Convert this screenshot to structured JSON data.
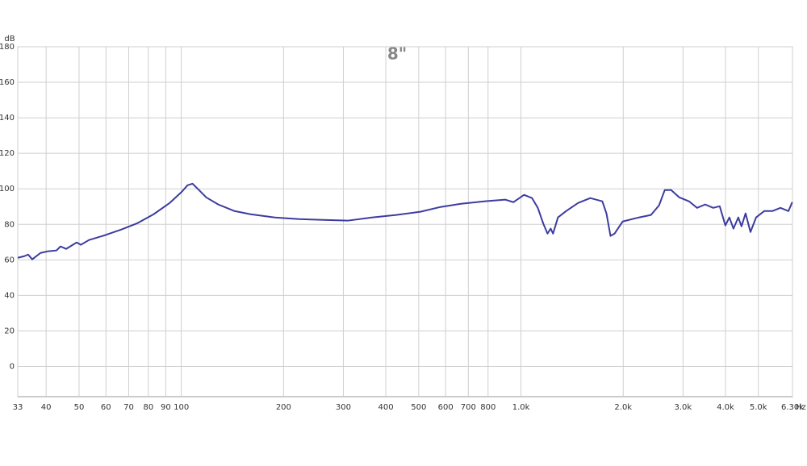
{
  "chart_data": {
    "type": "line",
    "title": "8\"",
    "y_label": "dB",
    "x_label": "Hz",
    "log_x": true,
    "grid": true,
    "xlim": [
      33,
      6300
    ],
    "ylim": [
      -17,
      180
    ],
    "xticks": [
      33,
      40,
      50,
      60,
      70,
      80,
      90,
      100,
      200,
      300,
      400,
      500,
      600,
      700,
      800,
      {
        "value": 1000,
        "label": "1.0k"
      },
      {
        "value": 2000,
        "label": "2.0k"
      },
      {
        "value": 3000,
        "label": "3.0k"
      },
      {
        "value": 4000,
        "label": "4.0k"
      },
      {
        "value": 5000,
        "label": "5.0k"
      },
      {
        "value": 6300,
        "label": "6.30k"
      }
    ],
    "yticks": [
      0,
      20,
      40,
      60,
      80,
      100,
      120,
      140,
      160,
      180
    ],
    "color": "#3c3ca0",
    "x": [
      33,
      34.5,
      35.4,
      36.4,
      38.5,
      40.6,
      42.9,
      44.1,
      45.8,
      49.2,
      50.6,
      53.5,
      59.6,
      66.6,
      74.3,
      82.9,
      92.5,
      100.4,
      104.3,
      107.9,
      112.1,
      118.4,
      128.5,
      143.4,
      160,
      188.6,
      222,
      262,
      309,
      364,
      429,
      506,
      580,
      666,
      784,
      900,
      950,
      1021,
      1078,
      1121,
      1164,
      1197,
      1223,
      1243,
      1285,
      1358,
      1474,
      1600,
      1736,
      1785,
      1835,
      1886,
      1992,
      2224,
      2414,
      2550,
      2650,
      2769,
      2925,
      3123,
      3300,
      3486,
      3680,
      3847,
      3997,
      4108,
      4222,
      4363,
      4460,
      4584,
      4739,
      4923,
      5202,
      5496,
      5806,
      6132,
      6290
    ],
    "values": [
      61.2,
      62.1,
      63,
      60.3,
      63.9,
      64.9,
      65.3,
      67.6,
      66.2,
      69.8,
      68.5,
      71.2,
      73.9,
      77.1,
      80.7,
      85.7,
      92.1,
      98.4,
      102,
      102.9,
      99.8,
      95.2,
      91.2,
      87.5,
      85.7,
      83.9,
      83,
      82.5,
      82.1,
      83.9,
      85.3,
      87.1,
      89.8,
      91.6,
      93,
      93.9,
      92.5,
      96.6,
      94.8,
      89.3,
      80.3,
      74.8,
      77.6,
      74.8,
      83.9,
      87.5,
      92.1,
      94.8,
      93,
      86.2,
      73.5,
      74.8,
      81.6,
      83.9,
      85.3,
      90.7,
      99.3,
      99.3,
      95.2,
      93,
      89.3,
      91.2,
      89.3,
      90.2,
      79.4,
      83.9,
      77.6,
      83.9,
      78.9,
      86.2,
      75.7,
      83.9,
      87.5,
      87.5,
      89.3,
      87.5,
      92.5
    ]
  }
}
